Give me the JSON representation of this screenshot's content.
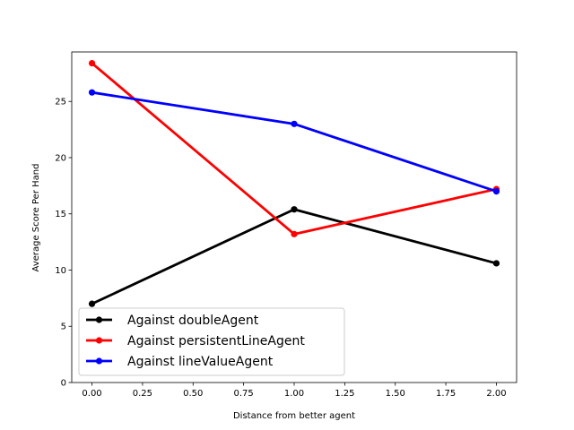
{
  "chart_data": {
    "type": "line",
    "title": "",
    "xlabel": "Distance from better agent",
    "ylabel": "Average Score Per Hand",
    "x": [
      0,
      1,
      2
    ],
    "xlim": [
      -0.1,
      2.1
    ],
    "ylim": [
      0,
      29.4
    ],
    "xticks": [
      0.0,
      0.25,
      0.5,
      0.75,
      1.0,
      1.25,
      1.5,
      1.75,
      2.0
    ],
    "xtick_labels": [
      "0.00",
      "0.25",
      "0.50",
      "0.75",
      "1.00",
      "1.25",
      "1.50",
      "1.75",
      "2.00"
    ],
    "yticks": [
      0,
      5,
      10,
      15,
      20,
      25
    ],
    "ytick_labels": [
      "0",
      "5",
      "10",
      "15",
      "20",
      "25"
    ],
    "grid": false,
    "legend_position": "lower-left",
    "series": [
      {
        "name": "Against doubleAgent",
        "color": "#000000",
        "values": [
          7.0,
          15.4,
          10.6
        ]
      },
      {
        "name": "Against persistentLineAgent",
        "color": "#ff0000",
        "values": [
          28.4,
          13.2,
          17.2
        ]
      },
      {
        "name": "Against lineValueAgent",
        "color": "#0000ff",
        "values": [
          25.8,
          23.0,
          17.0
        ]
      }
    ]
  }
}
